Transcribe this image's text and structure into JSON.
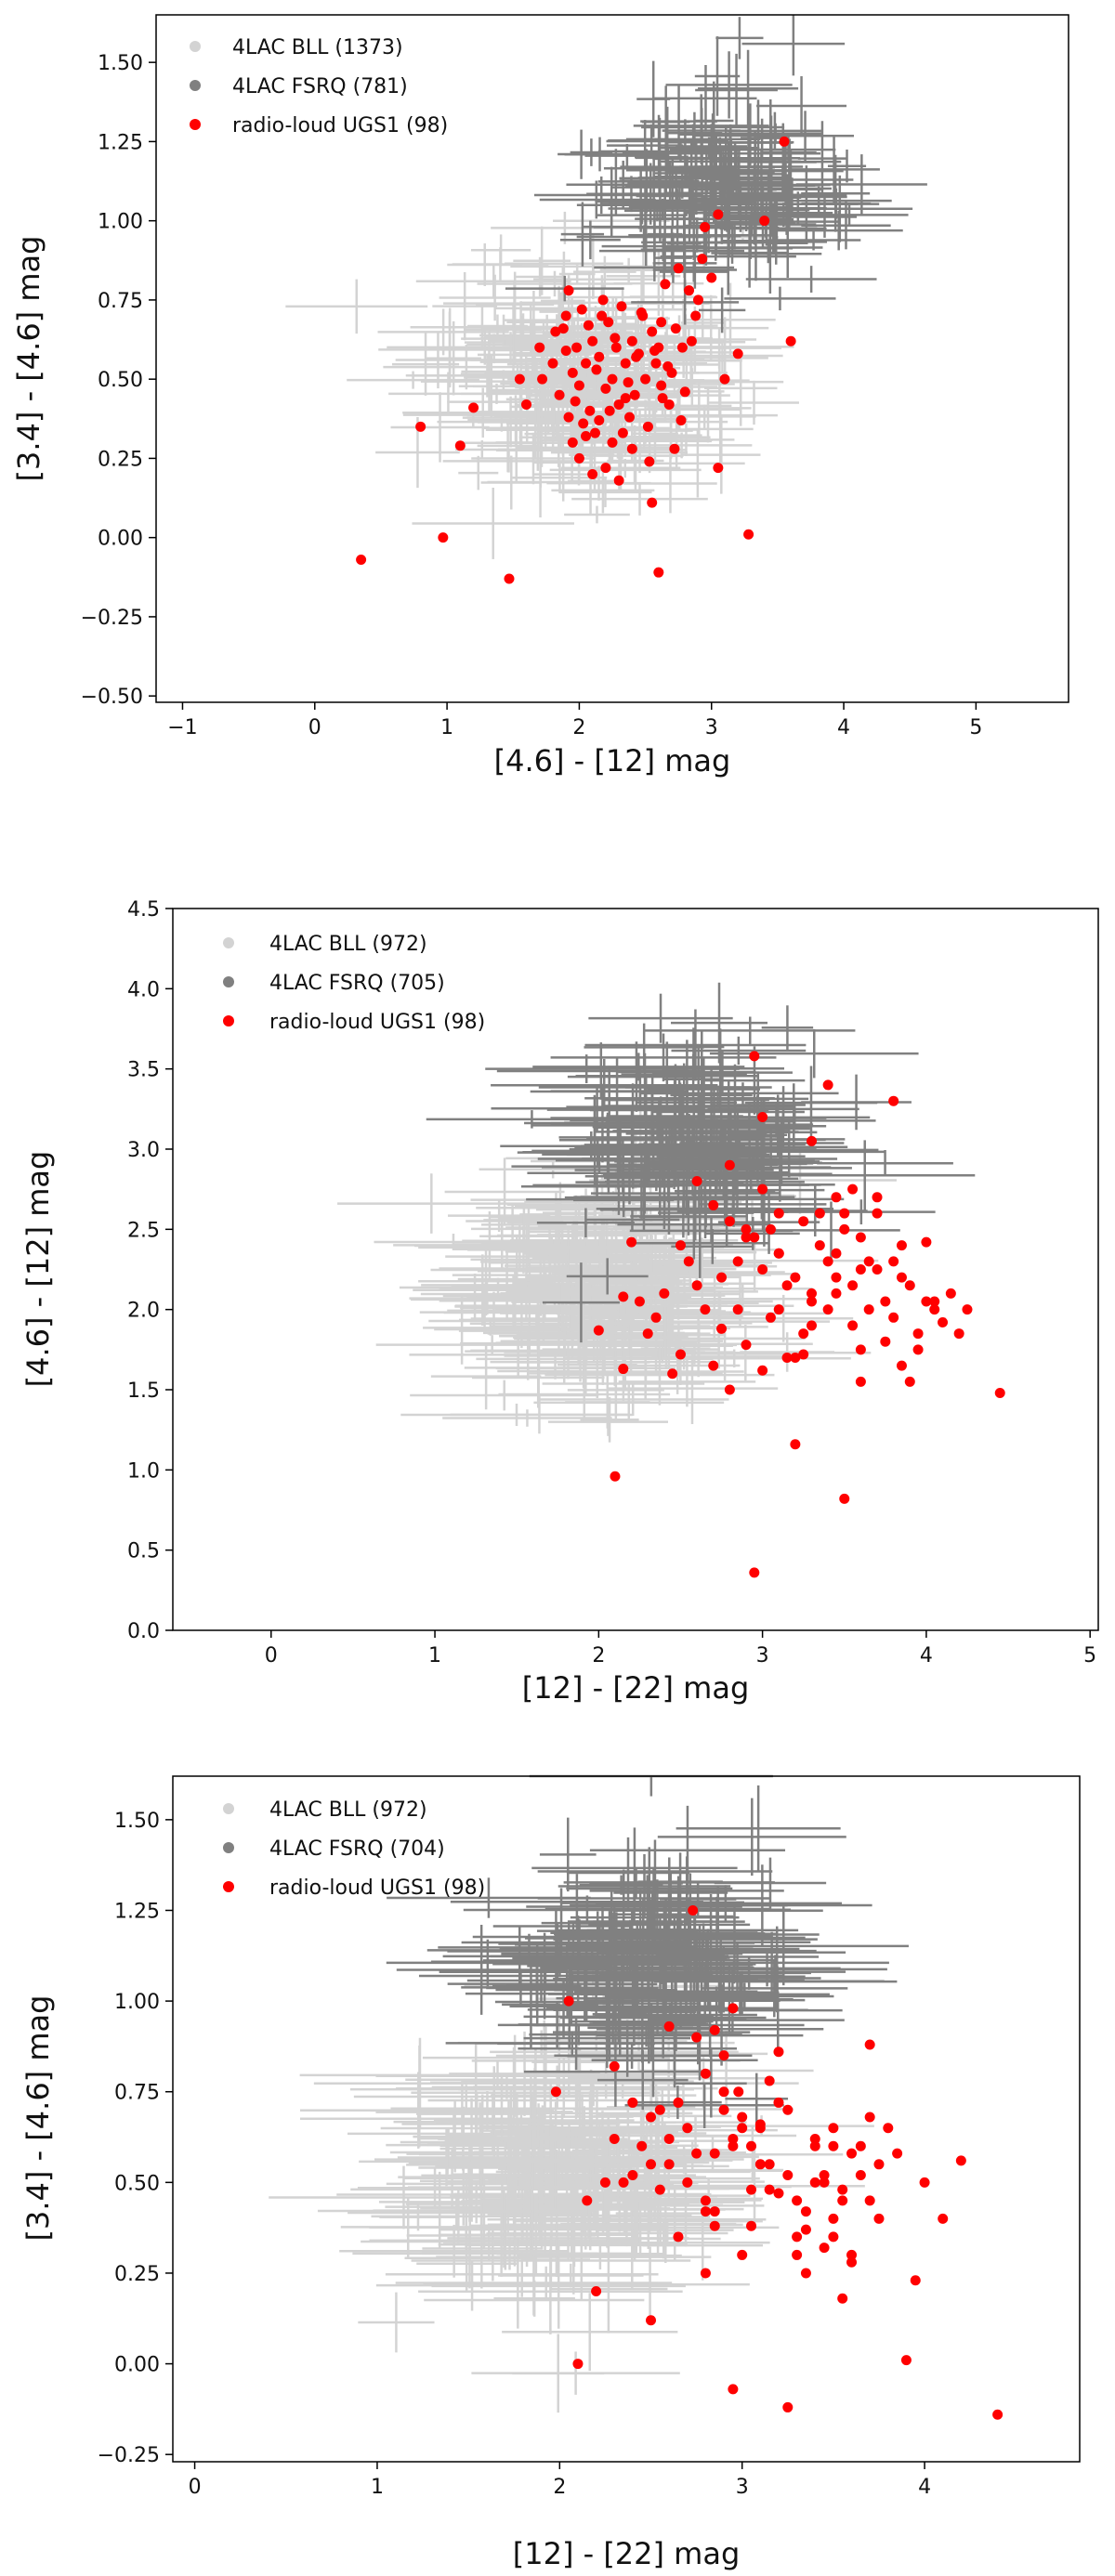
{
  "chart_data": [
    {
      "type": "scatter",
      "xlabel": "[4.6] - [12] mag",
      "ylabel": "[3.4] - [4.6] mag",
      "xlim": [
        -1.2,
        5.7
      ],
      "ylim": [
        -0.52,
        1.65
      ],
      "xticks": [
        -1,
        0,
        1,
        2,
        3,
        4,
        5
      ],
      "xtick_labels": [
        "−1",
        "0",
        "1",
        "2",
        "3",
        "4",
        "5"
      ],
      "yticks": [
        -0.5,
        -0.25,
        0.0,
        0.25,
        0.5,
        0.75,
        1.0,
        1.25,
        1.5
      ],
      "ytick_labels": [
        "−0.50",
        "−0.25",
        "0.00",
        "0.25",
        "0.50",
        "0.75",
        "1.00",
        "1.25",
        "1.50"
      ],
      "legend_position": "top-left",
      "series": [
        {
          "name": "4LAC BLL (1373)",
          "color": "#d3d3d3",
          "marker": "errorbar",
          "cloud": {
            "cx": 2.05,
            "cy": 0.5,
            "sx": 0.5,
            "sy": 0.16,
            "n": 300,
            "ex": 0.45,
            "ey": 0.09,
            "seed": 11
          }
        },
        {
          "name": "4LAC FSRQ (781)",
          "color": "#808080",
          "marker": "errorbar",
          "cloud": {
            "cx": 3.05,
            "cy": 1.1,
            "sx": 0.45,
            "sy": 0.14,
            "n": 200,
            "ex": 0.4,
            "ey": 0.09,
            "seed": 23
          }
        },
        {
          "name": "radio-loud UGS1 (98)",
          "color": "#ff0000",
          "marker": "dot",
          "x": [
            0.35,
            0.8,
            0.97,
            1.1,
            1.47,
            1.55,
            1.6,
            1.7,
            1.72,
            1.8,
            1.82,
            1.85,
            1.9,
            1.92,
            1.95,
            1.98,
            2.0,
            2.02,
            2.05,
            2.08,
            2.1,
            2.12,
            2.15,
            2.18,
            2.2,
            2.22,
            2.25,
            2.28,
            2.3,
            2.32,
            2.35,
            2.38,
            2.4,
            2.42,
            2.45,
            2.48,
            2.5,
            2.52,
            2.55,
            2.58,
            2.6,
            2.62,
            2.65,
            2.68,
            2.7,
            2.72,
            2.75,
            2.78,
            2.8,
            2.85,
            2.9,
            2.95,
            3.0,
            3.05,
            3.1,
            3.2,
            3.28,
            3.4,
            3.55,
            3.6,
            1.95,
            2.0,
            2.05,
            2.1,
            2.15,
            2.2,
            2.25,
            2.3,
            2.35,
            2.4,
            1.88,
            1.92,
            1.97,
            2.03,
            2.07,
            2.13,
            2.17,
            2.23,
            2.27,
            2.33,
            2.37,
            2.43,
            2.47,
            2.53,
            2.57,
            2.63,
            2.67,
            2.73,
            2.77,
            2.83,
            2.88,
            2.93,
            2.55,
            2.6,
            1.2,
            1.9,
            2.62,
            3.05
          ],
          "y": [
            -0.07,
            0.35,
            0.0,
            0.29,
            -0.13,
            0.5,
            0.42,
            0.6,
            0.5,
            0.55,
            0.65,
            0.45,
            0.7,
            0.38,
            0.52,
            0.6,
            0.48,
            0.72,
            0.55,
            0.4,
            0.62,
            0.33,
            0.57,
            0.75,
            0.47,
            0.68,
            0.5,
            0.6,
            0.42,
            0.73,
            0.55,
            0.38,
            0.62,
            0.45,
            0.58,
            0.7,
            0.5,
            0.35,
            0.65,
            0.55,
            0.6,
            0.48,
            0.8,
            0.42,
            0.52,
            0.28,
            0.85,
            0.6,
            0.46,
            0.62,
            0.75,
            0.98,
            0.82,
            1.02,
            0.5,
            0.58,
            0.01,
            1.0,
            1.25,
            0.62,
            0.3,
            0.25,
            0.32,
            0.2,
            0.37,
            0.22,
            0.3,
            0.18,
            0.44,
            0.28,
            0.66,
            0.78,
            0.43,
            0.36,
            0.67,
            0.53,
            0.7,
            0.4,
            0.63,
            0.33,
            0.49,
            0.57,
            0.71,
            0.24,
            0.59,
            0.44,
            0.54,
            0.66,
            0.37,
            0.78,
            0.7,
            0.88,
            0.11,
            -0.11,
            0.41,
            0.59,
            0.68,
            0.22
          ]
        }
      ]
    },
    {
      "type": "scatter",
      "xlabel": "[12] - [22] mag",
      "ylabel": "[4.6] - [12] mag",
      "xlim": [
        -0.6,
        5.05
      ],
      "ylim": [
        0.0,
        4.5
      ],
      "xticks": [
        0,
        1,
        2,
        3,
        4,
        5
      ],
      "xtick_labels": [
        "0",
        "1",
        "2",
        "3",
        "4",
        "5"
      ],
      "yticks": [
        0.0,
        0.5,
        1.0,
        1.5,
        2.0,
        2.5,
        3.0,
        3.5,
        4.0,
        4.5
      ],
      "ytick_labels": [
        "0.0",
        "0.5",
        "1.0",
        "1.5",
        "2.0",
        "2.5",
        "3.0",
        "3.5",
        "4.0",
        "4.5"
      ],
      "legend_position": "top-left",
      "series": [
        {
          "name": "4LAC BLL (972)",
          "color": "#d3d3d3",
          "marker": "errorbar",
          "cloud": {
            "cx": 2.05,
            "cy": 2.15,
            "sx": 0.38,
            "sy": 0.35,
            "n": 300,
            "ex": 0.55,
            "ey": 0.16,
            "seed": 37
          }
        },
        {
          "name": "4LAC FSRQ (705)",
          "color": "#808080",
          "marker": "errorbar",
          "cloud": {
            "cx": 2.6,
            "cy": 3.05,
            "sx": 0.35,
            "sy": 0.3,
            "n": 200,
            "ex": 0.5,
            "ey": 0.18,
            "seed": 41
          }
        },
        {
          "name": "radio-loud UGS1 (98)",
          "color": "#ff0000",
          "marker": "dot",
          "x": [
            2.95,
            2.1,
            3.5,
            3.2,
            2.15,
            2.5,
            2.8,
            3.0,
            3.3,
            3.6,
            3.9,
            4.45,
            4.0,
            2.75,
            2.9,
            3.1,
            3.4,
            3.7,
            2.6,
            3.8,
            2.4,
            2.25,
            2.3,
            2.7,
            2.85,
            3.05,
            3.15,
            3.25,
            3.35,
            3.45,
            3.55,
            3.65,
            3.75,
            3.85,
            3.95,
            4.05,
            4.15,
            4.25,
            2.65,
            2.95,
            3.2,
            3.5,
            3.8,
            3.0,
            3.3,
            3.6,
            2.9,
            3.1,
            3.4,
            3.7,
            4.0,
            2.8,
            3.0,
            3.25,
            3.55,
            3.85,
            2.7,
            3.1,
            3.45,
            3.75,
            4.1,
            2.2,
            2.45,
            2.55,
            3.35,
            3.65,
            3.95,
            2.75,
            3.05,
            3.3,
            3.6,
            3.9,
            4.2,
            2.6,
            2.85,
            3.15,
            3.45,
            2.15,
            2.35,
            2.5,
            3.2,
            3.5,
            3.8,
            2.0,
            2.95,
            3.1,
            3.4,
            3.7,
            3.0,
            3.3,
            2.8,
            3.55,
            3.85,
            4.05,
            3.25,
            3.45,
            2.9,
            3.6
          ],
          "y": [
            0.36,
            0.96,
            0.82,
            1.16,
            1.63,
            1.72,
            1.5,
            1.62,
            1.9,
            1.75,
            1.55,
            1.48,
            2.42,
            2.2,
            2.5,
            2.35,
            2.0,
            2.25,
            2.8,
            3.3,
            2.1,
            2.05,
            1.85,
            2.65,
            2.3,
            1.95,
            2.15,
            2.55,
            2.4,
            2.1,
            1.9,
            2.3,
            2.05,
            2.2,
            1.85,
            2.0,
            2.1,
            2.0,
            2.0,
            2.45,
            2.2,
            2.6,
            1.95,
            2.75,
            2.1,
            2.45,
            1.78,
            2.0,
            2.3,
            2.6,
            2.05,
            2.55,
            2.25,
            1.85,
            2.15,
            2.4,
            1.65,
            2.35,
            2.7,
            1.8,
            1.92,
            2.42,
            1.6,
            2.3,
            2.6,
            2.0,
            1.75,
            1.88,
            2.5,
            2.05,
            2.25,
            2.15,
            1.85,
            2.15,
            2.0,
            1.7,
            2.2,
            2.08,
            1.95,
            2.4,
            1.7,
            2.5,
            2.3,
            1.87,
            3.58,
            2.6,
            3.4,
            2.7,
            3.2,
            3.05,
            2.9,
            2.75,
            1.65,
            2.05,
            1.72,
            2.35,
            2.45,
            1.55
          ]
        }
      ]
    },
    {
      "type": "scatter",
      "xlabel": "[12] - [22] mag",
      "ylabel": "[3.4] - [4.6] mag",
      "xlim": [
        -0.12,
        4.85
      ],
      "ylim": [
        -0.27,
        1.62
      ],
      "xticks": [
        0,
        1,
        2,
        3,
        4
      ],
      "xtick_labels": [
        "0",
        "1",
        "2",
        "3",
        "4"
      ],
      "yticks": [
        -0.25,
        0.0,
        0.25,
        0.5,
        0.75,
        1.0,
        1.25,
        1.5
      ],
      "ytick_labels": [
        "−0.25",
        "0.00",
        "0.25",
        "0.50",
        "0.75",
        "1.00",
        "1.25",
        "1.50"
      ],
      "legend_position": "top-left",
      "series": [
        {
          "name": "4LAC BLL (972)",
          "color": "#d3d3d3",
          "marker": "errorbar",
          "cloud": {
            "cx": 2.05,
            "cy": 0.52,
            "sx": 0.38,
            "sy": 0.16,
            "n": 300,
            "ex": 0.55,
            "ey": 0.09,
            "seed": 53
          }
        },
        {
          "name": "4LAC FSRQ (704)",
          "color": "#808080",
          "marker": "errorbar",
          "cloud": {
            "cx": 2.55,
            "cy": 1.08,
            "sx": 0.35,
            "sy": 0.14,
            "n": 200,
            "ex": 0.5,
            "ey": 0.09,
            "seed": 67
          }
        },
        {
          "name": "radio-loud UGS1 (98)",
          "color": "#ff0000",
          "marker": "dot",
          "x": [
            2.95,
            2.1,
            3.25,
            3.9,
            4.4,
            2.2,
            2.5,
            2.8,
            3.0,
            3.3,
            3.6,
            3.95,
            4.1,
            2.15,
            2.35,
            2.6,
            2.85,
            3.05,
            3.15,
            3.35,
            3.45,
            3.55,
            3.65,
            3.75,
            3.85,
            4.0,
            4.2,
            2.7,
            2.9,
            3.1,
            3.2,
            3.4,
            3.5,
            3.7,
            3.8,
            2.75,
            2.95,
            3.05,
            3.25,
            3.45,
            3.6,
            2.65,
            2.8,
            3.0,
            3.15,
            3.3,
            3.5,
            3.65,
            2.45,
            2.55,
            2.7,
            2.9,
            3.1,
            3.35,
            2.85,
            3.05,
            3.2,
            3.4,
            3.55,
            3.75,
            2.6,
            2.8,
            3.0,
            3.25,
            3.5,
            2.5,
            2.75,
            2.95,
            3.15,
            3.4,
            3.7,
            2.4,
            2.65,
            2.9,
            3.3,
            3.6,
            2.3,
            2.55,
            2.85,
            3.1,
            3.45,
            2.25,
            2.5,
            2.8,
            2.98,
            3.2,
            2.6,
            2.4,
            3.5,
            3.7,
            2.73,
            2.95,
            3.35,
            3.55,
            2.85,
            2.3,
            1.98,
            2.05
          ],
          "y": [
            -0.07,
            0.0,
            -0.12,
            0.01,
            -0.14,
            0.2,
            0.12,
            0.25,
            0.3,
            0.35,
            0.3,
            0.23,
            0.4,
            0.45,
            0.5,
            0.55,
            0.42,
            0.6,
            0.48,
            0.37,
            0.52,
            0.45,
            0.6,
            0.4,
            0.58,
            0.5,
            0.56,
            0.65,
            0.7,
            0.55,
            0.47,
            0.62,
            0.35,
            0.68,
            0.65,
            0.58,
            0.62,
            0.48,
            0.7,
            0.5,
            0.28,
            0.72,
            0.8,
            0.65,
            0.55,
            0.45,
            0.6,
            0.52,
            0.6,
            0.7,
            0.5,
            0.75,
            0.65,
            0.42,
            0.58,
            0.38,
            0.72,
            0.6,
            0.48,
            0.55,
            0.62,
            0.45,
            0.68,
            0.52,
            0.4,
            0.55,
            0.9,
            0.6,
            0.78,
            0.5,
            0.45,
            0.72,
            0.35,
            0.85,
            0.3,
            0.58,
            0.82,
            0.48,
            0.92,
            0.66,
            0.32,
            0.5,
            0.68,
            0.42,
            0.75,
            0.86,
            0.93,
            0.52,
            0.65,
            0.88,
            1.25,
            0.98,
            0.25,
            0.18,
            0.38,
            0.62,
            0.75,
            1.0
          ]
        }
      ]
    }
  ]
}
